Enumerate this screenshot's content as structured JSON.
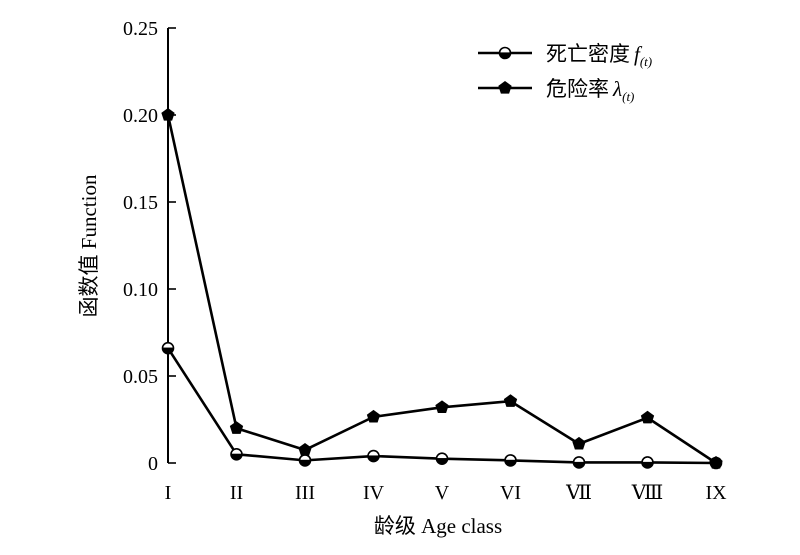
{
  "chart_data": {
    "type": "line",
    "xlabel": "龄级 Age class",
    "ylabel": "函数值 Function",
    "categories": [
      "I",
      "II",
      "III",
      "IV",
      "V",
      "VI",
      "Ⅶ",
      "Ⅷ",
      "IX"
    ],
    "ylim": [
      0,
      0.25
    ],
    "yticks": [
      "0",
      "0.05",
      "0.10",
      "0.15",
      "0.20",
      "0.25"
    ],
    "legend_position": "top-right",
    "grid": false,
    "series": [
      {
        "name": "死亡密度",
        "symbol": "f",
        "subscript": "(t)",
        "marker": "half-filled-circle",
        "values": [
          0.066,
          0.005,
          0.0015,
          0.004,
          0.0025,
          0.0015,
          0.0003,
          0.0003,
          0.0
        ]
      },
      {
        "name": "危险率",
        "symbol": "λ",
        "subscript": "(t)",
        "marker": "pentagon",
        "values": [
          0.2,
          0.02,
          0.0075,
          0.0265,
          0.032,
          0.0355,
          0.011,
          0.026,
          0.0
        ]
      }
    ]
  },
  "colors": {
    "line": "#000000",
    "background": "#ffffff"
  }
}
